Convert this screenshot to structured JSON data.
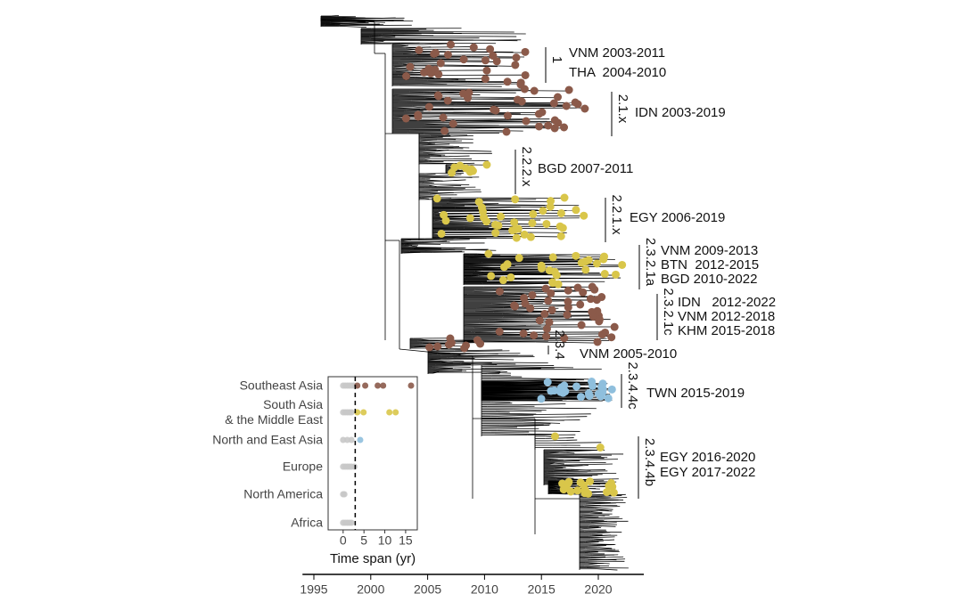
{
  "main_axis": {
    "xlim": [
      1994,
      2024
    ],
    "xticks": [
      1995,
      2000,
      2005,
      2010,
      2015,
      2020
    ]
  },
  "clades": [
    {
      "name": "1",
      "lines": [
        "VNM 2003-2011",
        "THA  2004-2010"
      ]
    },
    {
      "name": "2.1.x",
      "lines": [
        "IDN 2003-2019"
      ]
    },
    {
      "name": "2.2.2.x",
      "lines": [
        "BGD 2007-2011"
      ]
    },
    {
      "name": "2.2.1.x",
      "lines": [
        "EGY 2006-2019"
      ]
    },
    {
      "name": "2.3.2.1a",
      "lines": [
        "VNM 2009-2013",
        "BTN  2012-2015",
        "BGD 2010-2022"
      ]
    },
    {
      "name": "2.3.2.1c",
      "lines": [
        "IDN   2012-2022",
        "VNM 2012-2018",
        "KHM 2015-2018"
      ]
    },
    {
      "name": "2.3.4",
      "lines": [
        "VNM 2005-2010"
      ]
    },
    {
      "name": "2.3.4.4c",
      "lines": [
        "TWN 2015-2019"
      ]
    },
    {
      "name": "2.3.4.4b",
      "lines": [
        "EGY 2016-2020",
        "EGY 2017-2022"
      ]
    }
  ],
  "inset": {
    "type": "scatter",
    "categories": [
      "Southeast Asia",
      "South Asia\n& the Middle East",
      "North and East Asia",
      "Europe",
      "North America",
      "Africa"
    ],
    "values": [
      [
        0,
        0.5,
        1,
        1.5,
        2,
        2.5,
        3.4,
        5.3,
        8.3,
        9.6,
        16.3
      ],
      [
        0,
        0.5,
        1,
        1.5,
        2,
        3.4,
        4.9,
        11.1,
        12.6
      ],
      [
        0,
        1,
        2,
        4.1
      ],
      [
        0,
        0.5,
        1,
        1.5,
        2,
        2.7
      ],
      [
        0,
        0.3
      ],
      [
        0,
        0.5,
        1,
        1.5,
        2
      ]
    ],
    "colors": [
      "#8b5a4a",
      "#d9c64a",
      "#8fbfdd",
      "#c8c8c8",
      "#c8c8c8",
      "#c8c8c8"
    ],
    "below_color": "#c8c8c8",
    "xlim": [
      -3.6,
      17.8
    ],
    "xticks": [
      0,
      5,
      10,
      15
    ],
    "reference_line": 2.9,
    "xlabel": "Time span (yr)"
  }
}
